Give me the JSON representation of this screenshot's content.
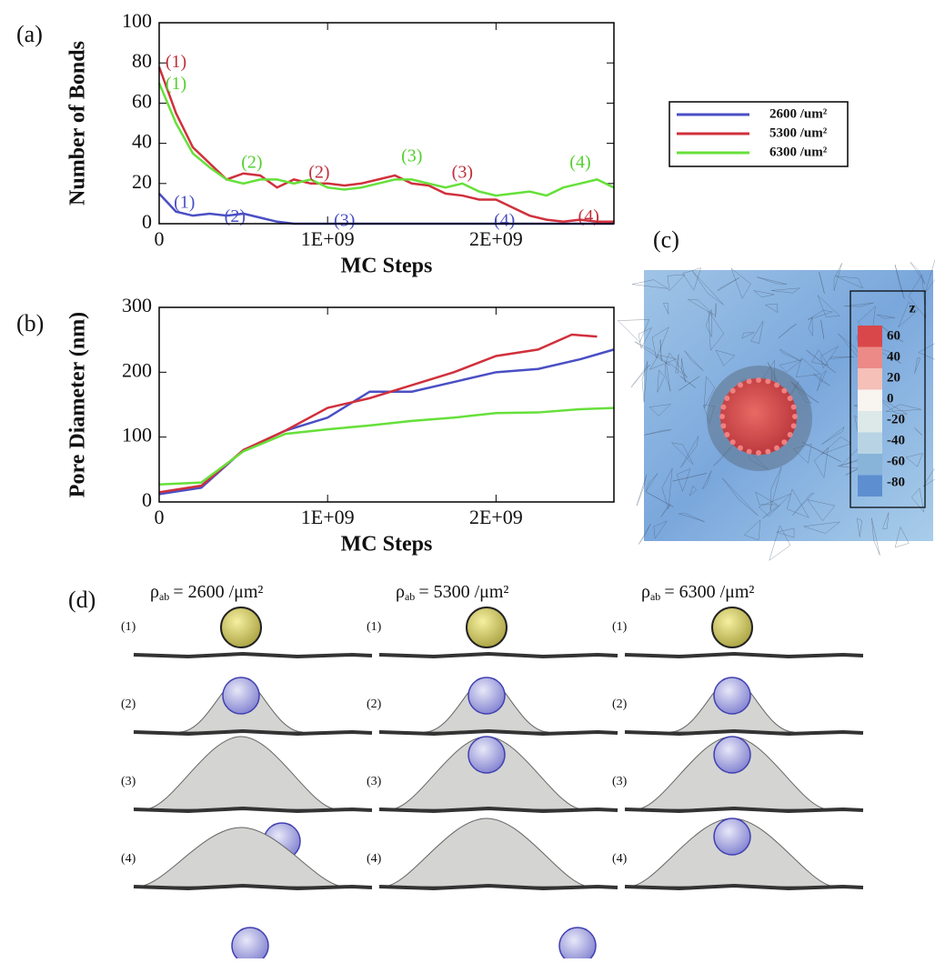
{
  "chart_data": [
    {
      "type": "line",
      "label": "(a)",
      "y_label": "Number of Bonds",
      "x_label": "MC Steps",
      "xlim": [
        0,
        2700000000
      ],
      "ylim": [
        0,
        100
      ],
      "xticks": [
        0,
        {
          "value": 1000000000,
          "label": "1E+09"
        },
        {
          "value": 2000000000,
          "label": "2E+09"
        }
      ],
      "yticks": [
        0,
        20,
        40,
        60,
        80,
        100
      ],
      "x": [
        0,
        100000000,
        200000000,
        300000000,
        400000000,
        500000000,
        600000000,
        700000000,
        800000000,
        900000000,
        1000000000,
        1100000000,
        1200000000,
        1300000000,
        1400000000,
        1500000000,
        1600000000,
        1700000000,
        1800000000,
        1900000000,
        2000000000,
        2100000000,
        2200000000,
        2300000000,
        2400000000,
        2500000000,
        2600000000,
        2700000000
      ],
      "series": [
        {
          "name": "2600 /um²",
          "color": "#4a4fc4",
          "values": [
            15,
            6,
            4,
            5,
            4,
            5,
            3,
            1,
            0,
            0,
            0,
            0,
            0,
            0,
            0,
            0,
            0,
            0,
            0,
            0,
            0,
            0,
            0,
            0,
            0,
            0,
            0,
            0
          ]
        },
        {
          "name": "5300 /um²",
          "color": "#d0303c",
          "values": [
            78,
            55,
            38,
            30,
            22,
            25,
            24,
            18,
            22,
            20,
            20,
            19,
            20,
            22,
            24,
            20,
            19,
            15,
            14,
            12,
            12,
            8,
            4,
            2,
            1,
            2,
            1,
            1
          ]
        },
        {
          "name": "6300 /um²",
          "color": "#66e03a",
          "values": [
            70,
            50,
            35,
            28,
            22,
            20,
            22,
            22,
            20,
            22,
            18,
            17,
            18,
            20,
            22,
            22,
            20,
            18,
            20,
            16,
            14,
            15,
            16,
            14,
            18,
            20,
            22,
            18
          ]
        }
      ],
      "legend": "right",
      "annotations": [
        {
          "text": "(1)",
          "x": 100000000,
          "y": 80,
          "color": "#c0303c"
        },
        {
          "text": "(1)",
          "x": 100000000,
          "y": 69,
          "color": "#55d030"
        },
        {
          "text": "(2)",
          "x": 550000000,
          "y": 30,
          "color": "#55d030"
        },
        {
          "text": "(3)",
          "x": 1500000000,
          "y": 33,
          "color": "#55d030"
        },
        {
          "text": "(4)",
          "x": 2500000000,
          "y": 30,
          "color": "#55d030"
        },
        {
          "text": "(2)",
          "x": 950000000,
          "y": 25,
          "color": "#c0303c"
        },
        {
          "text": "(3)",
          "x": 1800000000,
          "y": 25,
          "color": "#c0303c"
        },
        {
          "text": "(4)",
          "x": 2550000000,
          "y": 3,
          "color": "#c0303c"
        },
        {
          "text": "(1)",
          "x": 150000000,
          "y": 10,
          "color": "#4a4fc4"
        },
        {
          "text": "(2)",
          "x": 450000000,
          "y": 3,
          "color": "#4a4fc4"
        },
        {
          "text": "(3)",
          "x": 1100000000,
          "y": 1,
          "color": "#4a4fc4"
        },
        {
          "text": "(4)",
          "x": 2050000000,
          "y": 1,
          "color": "#4a4fc4"
        }
      ]
    },
    {
      "type": "line",
      "label": "(b)",
      "y_label": "Pore Diameter (nm)",
      "x_label": "MC Steps",
      "xlim": [
        0,
        2700000000
      ],
      "ylim": [
        0,
        300
      ],
      "xticks": [
        0,
        {
          "value": 1000000000,
          "label": "1E+09"
        },
        {
          "value": 2000000000,
          "label": "2E+09"
        }
      ],
      "yticks": [
        0,
        100,
        200,
        300
      ],
      "series": [
        {
          "color": "#4a4fc4",
          "x": [
            0,
            250000000,
            500000000,
            750000000,
            1000000000,
            1250000000,
            1500000000,
            1750000000,
            2000000000,
            2250000000,
            2500000000,
            2700000000
          ],
          "values": [
            12,
            22,
            80,
            110,
            130,
            170,
            170,
            185,
            200,
            205,
            220,
            235
          ]
        },
        {
          "color": "#d0303c",
          "x": [
            0,
            250000000,
            500000000,
            750000000,
            1000000000,
            1250000000,
            1500000000,
            1750000000,
            2000000000,
            2250000000,
            2450000000,
            2600000000
          ],
          "values": [
            15,
            25,
            80,
            110,
            145,
            160,
            180,
            200,
            225,
            235,
            258,
            255
          ]
        },
        {
          "color": "#66e03a",
          "x": [
            0,
            250000000,
            500000000,
            750000000,
            1000000000,
            1250000000,
            1500000000,
            1750000000,
            2000000000,
            2250000000,
            2500000000,
            2700000000
          ],
          "values": [
            27,
            30,
            78,
            105,
            112,
            118,
            125,
            130,
            137,
            138,
            143,
            145
          ]
        }
      ]
    }
  ],
  "panel_c": {
    "label": "(c)",
    "colorbar": {
      "title": "z",
      "ticks": [
        60,
        40,
        20,
        0,
        -20,
        -40,
        -60,
        -80
      ],
      "colors": [
        "#d9474a",
        "#eb8a86",
        "#f4c0b8",
        "#f8f4f0",
        "#dde8e8",
        "#b8d4e4",
        "#88b4da",
        "#5d8fd0"
      ]
    }
  },
  "panel_d": {
    "label": "(d)",
    "symbol": "ρ",
    "subscript": "ab",
    "columns": [
      "= 2600 /μm²",
      "= 5300 /μm²",
      "= 6300 /μm²"
    ],
    "rows": [
      "(1)",
      "(2)",
      "(3)",
      "(4)"
    ]
  }
}
